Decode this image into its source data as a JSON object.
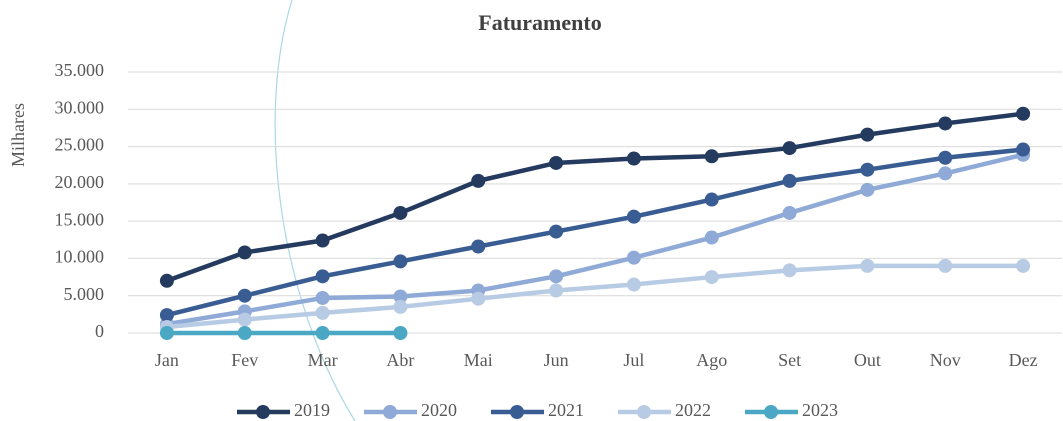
{
  "chart_data": {
    "type": "line",
    "title": "Faturamento",
    "ylabel": "Milhares",
    "categories": [
      "Jan",
      "Fev",
      "Mar",
      "Abr",
      "Mai",
      "Jun",
      "Jul",
      "Ago",
      "Set",
      "Out",
      "Nov",
      "Dez"
    ],
    "series": [
      {
        "name": "2019",
        "color": "#243a5e",
        "values": [
          7000,
          10800,
          12400,
          16100,
          20400,
          22800,
          23400,
          23700,
          24800,
          26600,
          28100,
          29400
        ]
      },
      {
        "name": "2020",
        "color": "#8faad6",
        "values": [
          1200,
          2900,
          4700,
          4900,
          5700,
          7600,
          10100,
          12800,
          16100,
          19200,
          21400,
          23900
        ]
      },
      {
        "name": "2021",
        "color": "#395c93",
        "values": [
          2400,
          5000,
          7600,
          9600,
          11600,
          13600,
          15600,
          17900,
          20400,
          21900,
          23500,
          24600
        ]
      },
      {
        "name": "2022",
        "color": "#b8cbe4",
        "values": [
          800,
          1800,
          2700,
          3500,
          4600,
          5700,
          6500,
          7500,
          8400,
          9000,
          9000,
          9000
        ]
      },
      {
        "name": "2023",
        "color": "#4aa8c4",
        "values": [
          0,
          0,
          0,
          0,
          null,
          null,
          null,
          null,
          null,
          null,
          null,
          null
        ]
      }
    ],
    "ylim": [
      0,
      35000
    ],
    "yticks": [
      0,
      {
        "value": 5000,
        "label": "5.000"
      },
      {
        "value": 10000,
        "label": "10.000"
      },
      {
        "value": 15000,
        "label": "15.000"
      },
      {
        "value": 20000,
        "label": "20.000"
      },
      {
        "value": 25000,
        "label": "25.000"
      },
      {
        "value": 30000,
        "label": "30.000"
      },
      {
        "value": 35000,
        "label": "35.000"
      }
    ],
    "grid": true,
    "legend": "bottom"
  }
}
